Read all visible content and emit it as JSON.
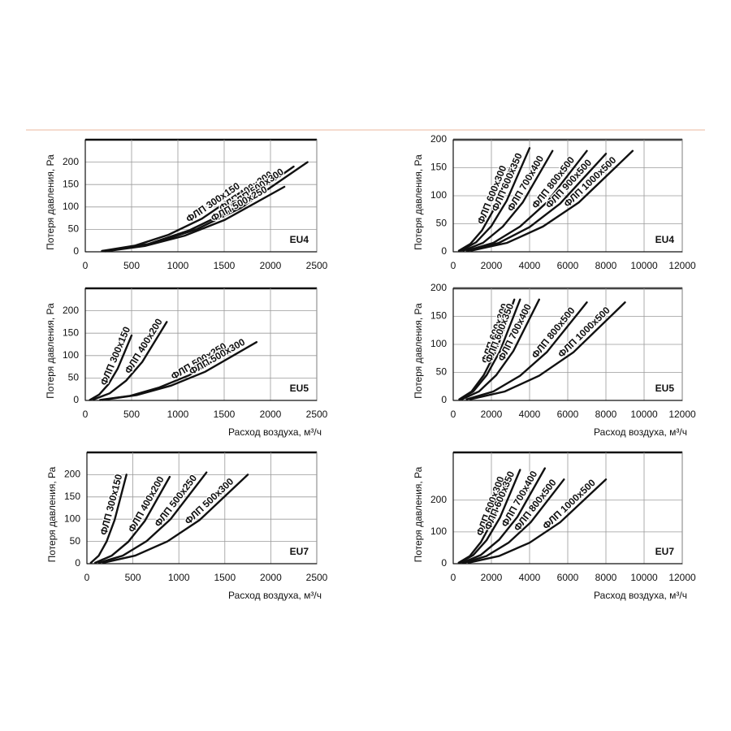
{
  "chart_data": [
    {
      "type": "line",
      "ylabel": "Потеря давления, Ра",
      "annotation": "EU4",
      "xlim": [
        0,
        2500
      ],
      "ylim": [
        0,
        250
      ],
      "xticks": [
        0,
        500,
        1000,
        1500,
        2000,
        2500
      ],
      "yticks": [
        0,
        50,
        100,
        150,
        200
      ],
      "grid": true,
      "series": [
        {
          "name": "ФЛП 300x150",
          "color": "#111111",
          "x": [
            180,
            540,
            900,
            1260,
            1800
          ],
          "values": [
            2,
            14,
            38,
            74,
            150
          ]
        },
        {
          "name": "ФЛП 400x200",
          "color": "#111111",
          "x": [
            225,
            675,
            1125,
            1575,
            2250
          ],
          "values": [
            2,
            17,
            48,
            93,
            190
          ]
        },
        {
          "name": "ФЛП 500x300",
          "color": "#111111",
          "x": [
            240,
            720,
            1200,
            1680,
            2400
          ],
          "values": [
            2,
            18,
            50,
            98,
            200
          ]
        },
        {
          "name": "ФЛП 500x250",
          "color": "#111111",
          "x": [
            215,
            645,
            1075,
            1505,
            2150
          ],
          "values": [
            1,
            13,
            36,
            71,
            145
          ]
        }
      ]
    },
    {
      "type": "line",
      "ylabel": "Потеря давления, Ра",
      "annotation": "EU4",
      "xlim": [
        0,
        12000
      ],
      "ylim": [
        0,
        200
      ],
      "xticks": [
        0,
        2000,
        4000,
        6000,
        8000,
        10000,
        12000
      ],
      "yticks": [
        0,
        50,
        100,
        150,
        200
      ],
      "grid": true,
      "series": [
        {
          "name": "ФЛП 600x300",
          "color": "#111111",
          "x": [
            300,
            900,
            1500,
            2100,
            3000
          ],
          "values": [
            2,
            14,
            38,
            74,
            150
          ]
        },
        {
          "name": "ФЛП 600x350",
          "color": "#111111",
          "x": [
            400,
            1200,
            2000,
            2800,
            4000
          ],
          "values": [
            2,
            17,
            46,
            91,
            185
          ]
        },
        {
          "name": "ФЛП 700x400",
          "color": "#111111",
          "x": [
            520,
            1560,
            2600,
            3640,
            5200
          ],
          "values": [
            2,
            16,
            45,
            88,
            180
          ]
        },
        {
          "name": "ФЛП 800x500",
          "color": "#111111",
          "x": [
            700,
            2100,
            3500,
            4900,
            7000
          ],
          "values": [
            2,
            16,
            45,
            88,
            180
          ]
        },
        {
          "name": "ФЛП 900x500",
          "color": "#111111",
          "x": [
            800,
            2400,
            4000,
            5600,
            8000
          ],
          "values": [
            2,
            16,
            44,
            86,
            175
          ]
        },
        {
          "name": "ФЛП 1000x500",
          "color": "#111111",
          "x": [
            940,
            2820,
            4700,
            6580,
            9400
          ],
          "values": [
            2,
            16,
            45,
            88,
            180
          ]
        }
      ]
    },
    {
      "type": "line",
      "ylabel": "Потеря давления, Ра",
      "xlabel": "Расход воздуха, м³/ч",
      "annotation": "EU5",
      "xlim": [
        0,
        2500
      ],
      "ylim": [
        0,
        250
      ],
      "xticks": [
        0,
        500,
        1000,
        1500,
        2000,
        2500
      ],
      "yticks": [
        0,
        50,
        100,
        150,
        200
      ],
      "grid": true,
      "series": [
        {
          "name": "ФЛП 300x150",
          "color": "#111111",
          "x": [
            50,
            150,
            250,
            350,
            500
          ],
          "values": [
            1,
            13,
            36,
            71,
            145
          ]
        },
        {
          "name": "ФЛП 400x200",
          "color": "#111111",
          "x": [
            88,
            264,
            440,
            616,
            880
          ],
          "values": [
            2,
            16,
            44,
            86,
            175
          ]
        },
        {
          "name": "ФЛП 500x250",
          "color": "#111111",
          "x": [
            160,
            480,
            800,
            1120,
            1600
          ],
          "values": [
            1,
            10,
            29,
            56,
            115
          ]
        },
        {
          "name": "ФЛП 500x300",
          "color": "#111111",
          "x": [
            185,
            555,
            925,
            1295,
            1850
          ],
          "values": [
            1,
            12,
            33,
            64,
            130
          ]
        }
      ]
    },
    {
      "type": "line",
      "ylabel": "Потеря давления, Ра",
      "xlabel": "Расход воздуха, м³/ч",
      "annotation": "EU5",
      "xlim": [
        0,
        12000
      ],
      "ylim": [
        0,
        200
      ],
      "xticks": [
        0,
        2000,
        4000,
        6000,
        8000,
        10000,
        12000
      ],
      "yticks": [
        0,
        50,
        100,
        150,
        200
      ],
      "grid": true,
      "series": [
        {
          "name": "ФЛП 600x300",
          "color": "#111111",
          "x": [
            320,
            960,
            1600,
            2240,
            3200
          ],
          "values": [
            2,
            16,
            45,
            88,
            180
          ]
        },
        {
          "name": "ФЛП 600x350",
          "color": "#111111",
          "x": [
            350,
            1050,
            1750,
            2450,
            3500
          ],
          "values": [
            2,
            16,
            45,
            88,
            180
          ]
        },
        {
          "name": "ФЛП 700x400",
          "color": "#111111",
          "x": [
            450,
            1350,
            2250,
            3150,
            4500
          ],
          "values": [
            2,
            16,
            45,
            88,
            180
          ]
        },
        {
          "name": "ФЛП 800x500",
          "color": "#111111",
          "x": [
            700,
            2100,
            3500,
            4900,
            7000
          ],
          "values": [
            2,
            16,
            44,
            86,
            175
          ]
        },
        {
          "name": "ФЛП 1000x500",
          "color": "#111111",
          "x": [
            900,
            2700,
            4500,
            6300,
            9000
          ],
          "values": [
            2,
            16,
            44,
            86,
            175
          ]
        }
      ]
    },
    {
      "type": "line",
      "ylabel": "Потеря давления, Ра",
      "xlabel": "Расход воздуха, м³/ч",
      "annotation": "EU7",
      "xlim": [
        0,
        2500
      ],
      "ylim": [
        0,
        250
      ],
      "xticks": [
        0,
        500,
        1000,
        1500,
        2000,
        2500
      ],
      "yticks": [
        0,
        50,
        100,
        150,
        200
      ],
      "grid": true,
      "series": [
        {
          "name": "ФЛП 300x150",
          "color": "#111111",
          "x": [
            43,
            129,
            215,
            301,
            430
          ],
          "values": [
            2,
            18,
            50,
            98,
            200
          ]
        },
        {
          "name": "ФЛП 400x200",
          "color": "#111111",
          "x": [
            90,
            270,
            450,
            630,
            900
          ],
          "values": [
            2,
            18,
            49,
            96,
            195
          ]
        },
        {
          "name": "ФЛП 500x250",
          "color": "#111111",
          "x": [
            130,
            390,
            650,
            910,
            1300
          ],
          "values": [
            2,
            18,
            51,
            100,
            205
          ]
        },
        {
          "name": "ФЛП 500x300",
          "color": "#111111",
          "x": [
            175,
            525,
            875,
            1225,
            1750
          ],
          "values": [
            2,
            18,
            50,
            98,
            200
          ]
        }
      ]
    },
    {
      "type": "line",
      "ylabel": "Потеря давления, Ра",
      "xlabel": "Расход воздуха, м³/ч",
      "annotation": "EU7",
      "xlim": [
        0,
        12000
      ],
      "ylim": [
        0,
        350
      ],
      "xticks": [
        0,
        2000,
        4000,
        6000,
        8000,
        10000,
        12000
      ],
      "yticks": [
        0,
        100,
        200
      ],
      "grid": true,
      "series": [
        {
          "name": "ФЛП 600x300",
          "color": "#111111",
          "x": [
            290,
            870,
            1450,
            2030,
            2900
          ],
          "values": [
            3,
            24,
            68,
            132,
            270
          ]
        },
        {
          "name": "ФЛП 600x350",
          "color": "#111111",
          "x": [
            350,
            1050,
            1750,
            2450,
            3500
          ],
          "values": [
            3,
            27,
            74,
            145,
            295
          ]
        },
        {
          "name": "ФЛП 700x400",
          "color": "#111111",
          "x": [
            480,
            1440,
            2400,
            3360,
            4800
          ],
          "values": [
            3,
            27,
            75,
            147,
            300
          ]
        },
        {
          "name": "ФЛП 800x500",
          "color": "#111111",
          "x": [
            580,
            1740,
            2900,
            4060,
            5800
          ],
          "values": [
            3,
            24,
            66,
            130,
            265
          ]
        },
        {
          "name": "ФЛП 1000x500",
          "color": "#111111",
          "x": [
            800,
            2400,
            4000,
            5600,
            8000
          ],
          "values": [
            3,
            24,
            66,
            130,
            265
          ]
        }
      ]
    }
  ]
}
